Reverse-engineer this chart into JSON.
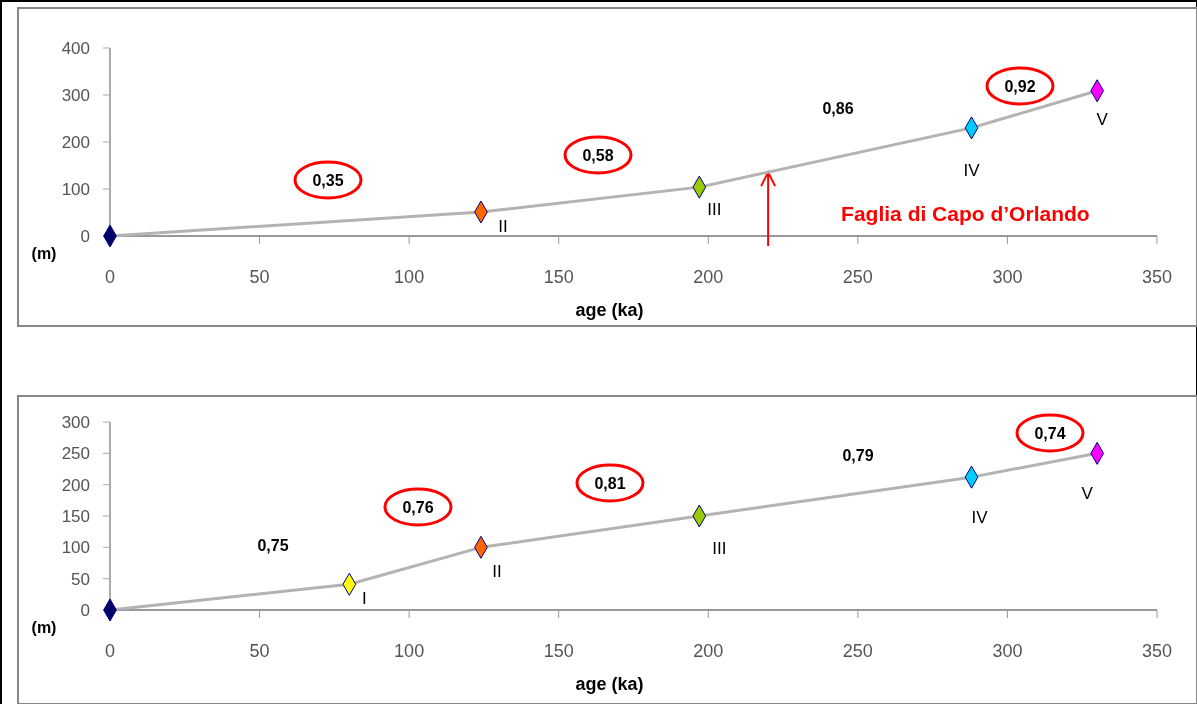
{
  "chart_data": [
    {
      "type": "line",
      "xlabel": "age (ka)",
      "ylabel": "(m)",
      "marker": "diamond",
      "grid": false,
      "xlim": [
        0,
        350
      ],
      "xticks": [
        0,
        50,
        100,
        150,
        200,
        250,
        300,
        350
      ],
      "ylim": [
        0,
        400
      ],
      "yticks": [
        0,
        100,
        200,
        300,
        400
      ],
      "series": [
        {
          "color": "#b3b3b3",
          "colors": [
            "#000066",
            "#ff6600",
            "#99cc00",
            "#00ccff",
            "#ff00ff"
          ],
          "x": [
            0,
            124,
            197,
            288,
            330
          ],
          "values": [
            0,
            51,
            104,
            230,
            309
          ],
          "value_labels": [
            null,
            "II",
            "III",
            "IV",
            "V"
          ]
        }
      ],
      "ref_lines": [
        {
          "axis": "x",
          "value": 220,
          "label": "Faglia di Capo d’Orlando",
          "color": "#ff0000"
        }
      ],
      "annotations": [
        "0,35",
        "0,58",
        "0,86",
        "0,92"
      ]
    },
    {
      "type": "line",
      "xlabel": "age (ka)",
      "ylabel": "(m)",
      "marker": "diamond",
      "grid": false,
      "xlim": [
        0,
        350
      ],
      "xticks": [
        0,
        50,
        100,
        150,
        200,
        250,
        300,
        350
      ],
      "ylim": [
        0,
        300
      ],
      "yticks": [
        0,
        50,
        100,
        150,
        200,
        250,
        300
      ],
      "series": [
        {
          "color": "#b3b3b3",
          "colors": [
            "#000066",
            "#ffff00",
            "#ff6600",
            "#99cc00",
            "#00ccff",
            "#ff00ff"
          ],
          "x": [
            0,
            80,
            124,
            197,
            288,
            330
          ],
          "values": [
            0,
            41,
            100,
            150,
            212,
            250
          ],
          "value_labels": [
            null,
            "I",
            "II",
            "III",
            "IV",
            "V"
          ]
        }
      ],
      "annotations": [
        "0,75",
        "0,76",
        "0,81",
        "0,79",
        "0,74"
      ]
    }
  ]
}
